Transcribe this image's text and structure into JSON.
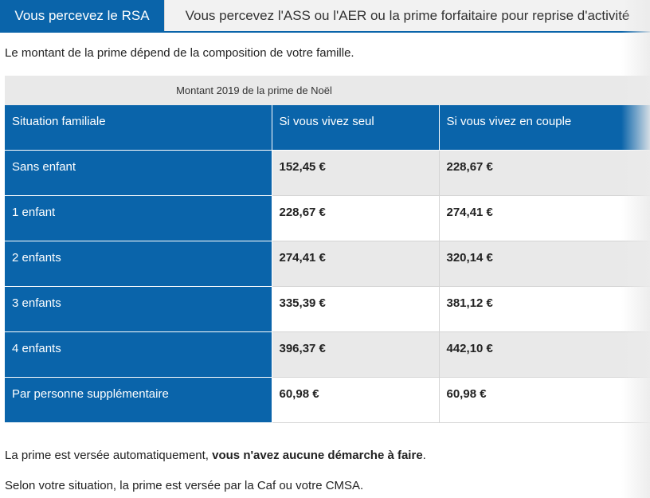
{
  "tabs": [
    {
      "label": "Vous percevez le RSA",
      "active": true
    },
    {
      "label": "Vous percevez l'ASS ou l'AER ou la prime forfaitaire pour reprise d'activité",
      "active": false
    }
  ],
  "intro": "Le montant de la prime dépend de la composition de votre famille.",
  "table": {
    "caption": "Montant 2019 de la prime de Noël",
    "headers": [
      "Situation familiale",
      "Si vous vivez seul",
      "Si vous vivez en couple"
    ],
    "rows": [
      {
        "label": "Sans enfant",
        "seul": "152,45 €",
        "couple": "228,67 €"
      },
      {
        "label": "1 enfant",
        "seul": "228,67 €",
        "couple": "274,41 €"
      },
      {
        "label": "2 enfants",
        "seul": "274,41 €",
        "couple": "320,14 €"
      },
      {
        "label": "3 enfants",
        "seul": "335,39 €",
        "couple": "381,12 €"
      },
      {
        "label": "4 enfants",
        "seul": "396,37 €",
        "couple": "442,10 €"
      },
      {
        "label": "Par personne supplémentaire",
        "seul": "60,98 €",
        "couple": "60,98 €"
      }
    ]
  },
  "notes": {
    "auto_text": "La prime est versée automatiquement, ",
    "auto_bold": "vous n'avez aucune démarche à faire",
    "auto_end": ".",
    "payer": "Selon votre situation, la prime est versée par la Caf ou votre CMSA."
  },
  "colors": {
    "accent": "#0a64aa",
    "row_alt": "#e9e9e9"
  }
}
